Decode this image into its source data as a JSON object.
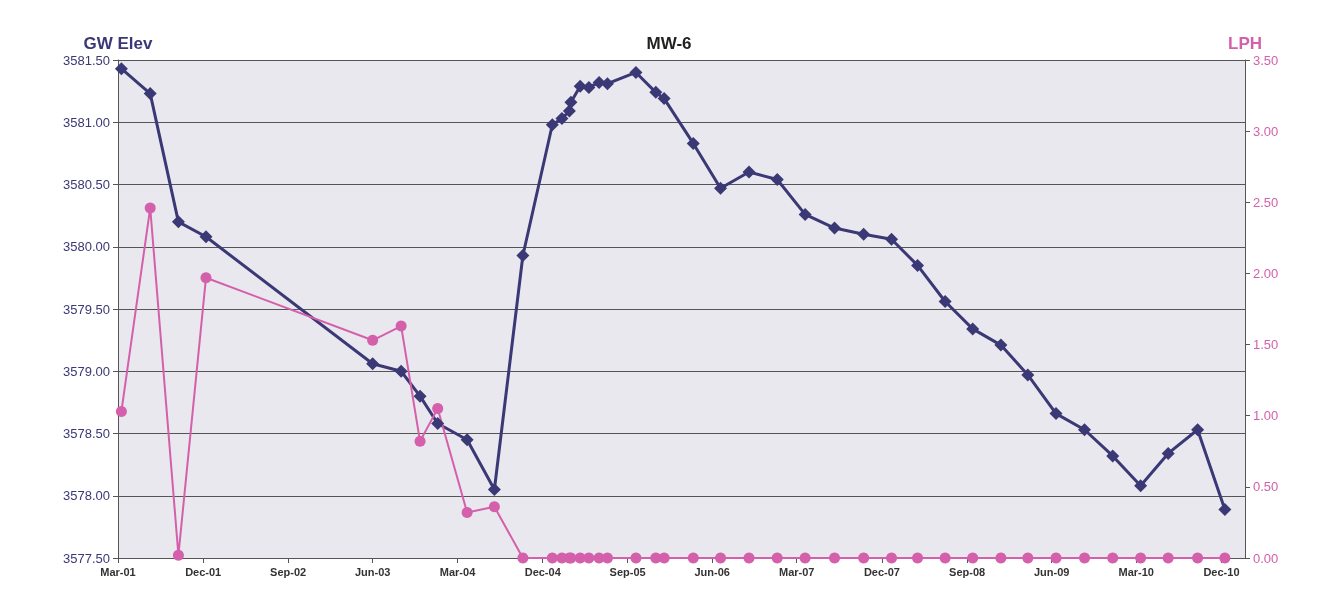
{
  "chart_data": {
    "type": "line",
    "title": "MW-6",
    "ylabel": "GW Elev",
    "y2label": "LPH",
    "x": [
      "2001-03-12",
      "2001-06-13",
      "2001-09-12",
      "2001-12-10",
      "2003-06-01",
      "2003-09-01",
      "2003-11-01",
      "2003-12-28",
      "2004-04-01",
      "2004-06-28",
      "2004-09-28",
      "2005-01-01",
      "2005-02-01",
      "2005-02-25",
      "2005-03-02",
      "2005-04-01",
      "2005-04-29",
      "2005-06-01",
      "2005-06-28",
      "2005-09-28",
      "2005-12-01",
      "2005-12-28",
      "2006-04-01",
      "2006-06-28",
      "2006-09-28",
      "2006-12-28",
      "2007-03-28",
      "2007-07-01",
      "2007-10-03",
      "2008-01-01",
      "2008-03-25",
      "2008-06-22",
      "2008-09-19",
      "2008-12-19",
      "2009-03-16",
      "2009-06-15",
      "2009-09-15",
      "2009-12-15",
      "2010-03-15",
      "2010-06-12",
      "2010-09-15",
      "2010-12-12"
    ],
    "series": [
      {
        "color": "#3b3876",
        "marker": "diamond",
        "values": [
          3581.43,
          3581.23,
          3580.2,
          3580.08,
          3579.06,
          3579.0,
          3578.8,
          3578.58,
          3578.45,
          3578.05,
          3579.93,
          3580.98,
          3581.03,
          3581.09,
          3581.16,
          3581.29,
          3581.28,
          3581.32,
          3581.31,
          3581.4,
          3581.24,
          3581.19,
          3580.83,
          3580.47,
          3580.6,
          3580.54,
          3580.26,
          3580.15,
          3580.1,
          3580.06,
          3579.85,
          3579.56,
          3579.34,
          3579.21,
          3578.97,
          3578.66,
          3578.53,
          3578.32,
          3578.08,
          3578.34,
          3578.53,
          3577.89
        ]
      },
      {
        "color": "#d460ab",
        "marker": "circle",
        "axis": "y2",
        "values": [
          1.03,
          2.46,
          0.02,
          1.97,
          1.53,
          1.63,
          0.82,
          1.05,
          0.32,
          0.36,
          0,
          0,
          0,
          0,
          0,
          0,
          0,
          0,
          0,
          0,
          0,
          0,
          0,
          0,
          0,
          0,
          0,
          0,
          0,
          0,
          0,
          0,
          0,
          0,
          0,
          0,
          0,
          0,
          0,
          0,
          0,
          0
        ]
      }
    ],
    "xlim": [
      "2001-03-01",
      "2011-02-15"
    ],
    "xticks": [
      {
        "value": "2001-03-01",
        "label": "Mar-01"
      },
      {
        "value": "2001-12-01",
        "label": "Dec-01"
      },
      {
        "value": "2002-09-01",
        "label": "Sep-02"
      },
      {
        "value": "2003-06-01",
        "label": "Jun-03"
      },
      {
        "value": "2004-03-01",
        "label": "Mar-04"
      },
      {
        "value": "2004-12-01",
        "label": "Dec-04"
      },
      {
        "value": "2005-09-01",
        "label": "Sep-05"
      },
      {
        "value": "2006-06-01",
        "label": "Jun-06"
      },
      {
        "value": "2007-03-01",
        "label": "Mar-07"
      },
      {
        "value": "2007-12-01",
        "label": "Dec-07"
      },
      {
        "value": "2008-09-01",
        "label": "Sep-08"
      },
      {
        "value": "2009-06-01",
        "label": "Jun-09"
      },
      {
        "value": "2010-03-01",
        "label": "Mar-10"
      },
      {
        "value": "2010-12-01",
        "label": "Dec-10"
      }
    ],
    "ylim": [
      3577.5,
      3581.5
    ],
    "yticks": [
      {
        "value": 3577.5,
        "label": "3577.50"
      },
      {
        "value": 3578,
        "label": "3578.00"
      },
      {
        "value": 3578.5,
        "label": "3578.50"
      },
      {
        "value": 3579,
        "label": "3579.00"
      },
      {
        "value": 3579.5,
        "label": "3579.50"
      },
      {
        "value": 3580,
        "label": "3580.00"
      },
      {
        "value": 3580.5,
        "label": "3580.50"
      },
      {
        "value": 3581,
        "label": "3581.00"
      },
      {
        "value": 3581.5,
        "label": "3581.50"
      }
    ],
    "y2lim": [
      0,
      3.5
    ],
    "y2ticks": [
      {
        "value": 0,
        "label": "0.00"
      },
      {
        "value": 0.5,
        "label": "0.50"
      },
      {
        "value": 1,
        "label": "1.00"
      },
      {
        "value": 1.5,
        "label": "1.50"
      },
      {
        "value": 2,
        "label": "2.00"
      },
      {
        "value": 2.5,
        "label": "2.50"
      },
      {
        "value": 3,
        "label": "3.00"
      },
      {
        "value": 3.5,
        "label": "3.50"
      }
    ],
    "grid": "y"
  }
}
